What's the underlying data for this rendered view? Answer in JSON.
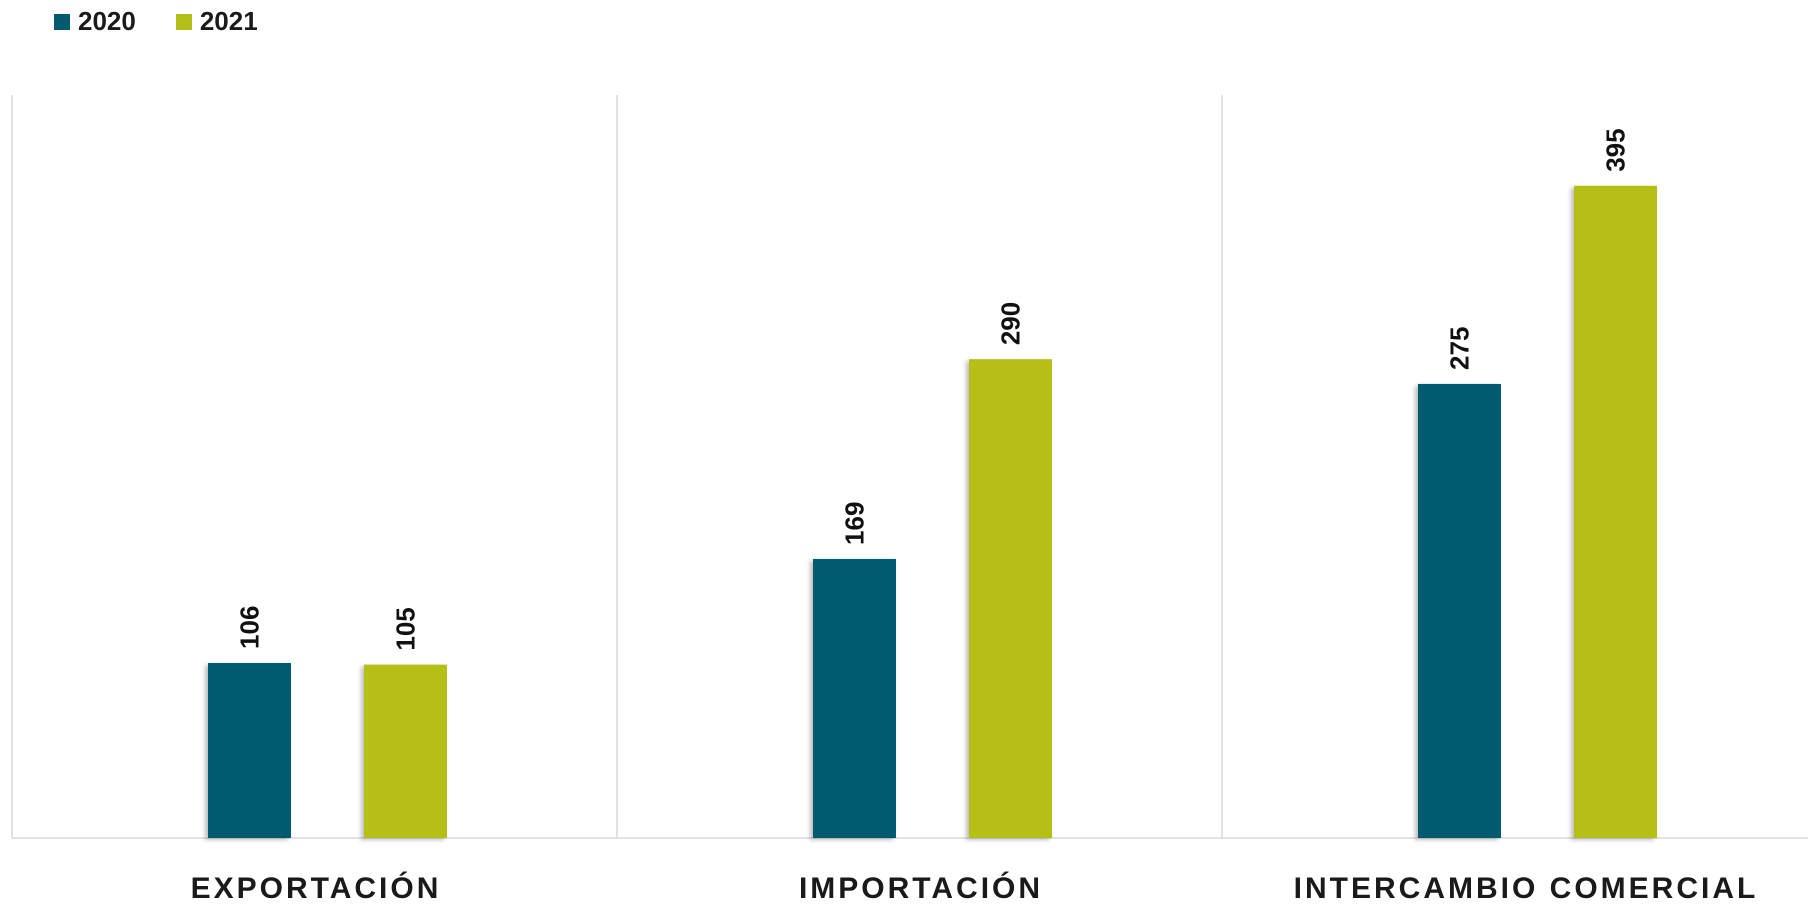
{
  "chart_data": {
    "type": "bar",
    "categories": [
      "EXPORTACIÓN",
      "IMPORTACIÓN",
      "INTERCAMBIO COMERCIAL"
    ],
    "series": [
      {
        "name": "2020",
        "values": [
          106,
          169,
          275
        ],
        "color": "#025a6f"
      },
      {
        "name": "2021",
        "values": [
          105,
          290,
          395
        ],
        "color": "#b5bf19"
      }
    ],
    "ylim": [
      0,
      450
    ],
    "grid": false,
    "legend_position": "top-left",
    "title": "",
    "xlabel": "",
    "ylabel": ""
  }
}
